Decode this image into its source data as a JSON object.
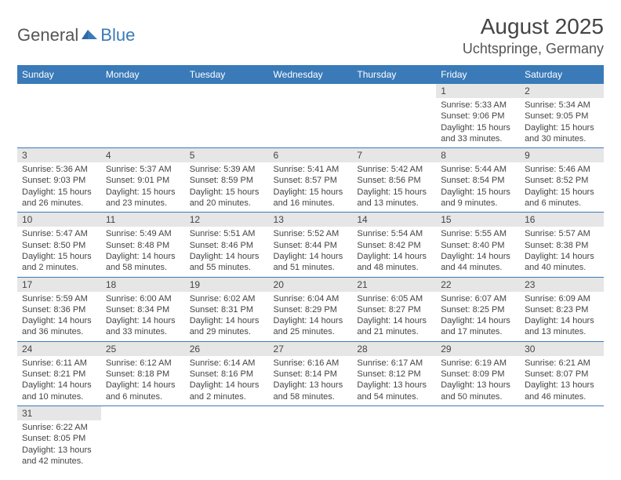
{
  "logo": {
    "left": "General",
    "right": "Blue"
  },
  "title": "August 2025",
  "location": "Uchtspringe, Germany",
  "colors": {
    "headerBar": "#3a7ab8",
    "dateBg": "#e6e6e6"
  },
  "dayNames": [
    "Sunday",
    "Monday",
    "Tuesday",
    "Wednesday",
    "Thursday",
    "Friday",
    "Saturday"
  ],
  "weeks": [
    [
      null,
      null,
      null,
      null,
      null,
      {
        "d": "1",
        "sr": "5:33 AM",
        "ss": "9:06 PM",
        "dl": "15 hours and 33 minutes."
      },
      {
        "d": "2",
        "sr": "5:34 AM",
        "ss": "9:05 PM",
        "dl": "15 hours and 30 minutes."
      }
    ],
    [
      {
        "d": "3",
        "sr": "5:36 AM",
        "ss": "9:03 PM",
        "dl": "15 hours and 26 minutes."
      },
      {
        "d": "4",
        "sr": "5:37 AM",
        "ss": "9:01 PM",
        "dl": "15 hours and 23 minutes."
      },
      {
        "d": "5",
        "sr": "5:39 AM",
        "ss": "8:59 PM",
        "dl": "15 hours and 20 minutes."
      },
      {
        "d": "6",
        "sr": "5:41 AM",
        "ss": "8:57 PM",
        "dl": "15 hours and 16 minutes."
      },
      {
        "d": "7",
        "sr": "5:42 AM",
        "ss": "8:56 PM",
        "dl": "15 hours and 13 minutes."
      },
      {
        "d": "8",
        "sr": "5:44 AM",
        "ss": "8:54 PM",
        "dl": "15 hours and 9 minutes."
      },
      {
        "d": "9",
        "sr": "5:46 AM",
        "ss": "8:52 PM",
        "dl": "15 hours and 6 minutes."
      }
    ],
    [
      {
        "d": "10",
        "sr": "5:47 AM",
        "ss": "8:50 PM",
        "dl": "15 hours and 2 minutes."
      },
      {
        "d": "11",
        "sr": "5:49 AM",
        "ss": "8:48 PM",
        "dl": "14 hours and 58 minutes."
      },
      {
        "d": "12",
        "sr": "5:51 AM",
        "ss": "8:46 PM",
        "dl": "14 hours and 55 minutes."
      },
      {
        "d": "13",
        "sr": "5:52 AM",
        "ss": "8:44 PM",
        "dl": "14 hours and 51 minutes."
      },
      {
        "d": "14",
        "sr": "5:54 AM",
        "ss": "8:42 PM",
        "dl": "14 hours and 48 minutes."
      },
      {
        "d": "15",
        "sr": "5:55 AM",
        "ss": "8:40 PM",
        "dl": "14 hours and 44 minutes."
      },
      {
        "d": "16",
        "sr": "5:57 AM",
        "ss": "8:38 PM",
        "dl": "14 hours and 40 minutes."
      }
    ],
    [
      {
        "d": "17",
        "sr": "5:59 AM",
        "ss": "8:36 PM",
        "dl": "14 hours and 36 minutes."
      },
      {
        "d": "18",
        "sr": "6:00 AM",
        "ss": "8:34 PM",
        "dl": "14 hours and 33 minutes."
      },
      {
        "d": "19",
        "sr": "6:02 AM",
        "ss": "8:31 PM",
        "dl": "14 hours and 29 minutes."
      },
      {
        "d": "20",
        "sr": "6:04 AM",
        "ss": "8:29 PM",
        "dl": "14 hours and 25 minutes."
      },
      {
        "d": "21",
        "sr": "6:05 AM",
        "ss": "8:27 PM",
        "dl": "14 hours and 21 minutes."
      },
      {
        "d": "22",
        "sr": "6:07 AM",
        "ss": "8:25 PM",
        "dl": "14 hours and 17 minutes."
      },
      {
        "d": "23",
        "sr": "6:09 AM",
        "ss": "8:23 PM",
        "dl": "14 hours and 13 minutes."
      }
    ],
    [
      {
        "d": "24",
        "sr": "6:11 AM",
        "ss": "8:21 PM",
        "dl": "14 hours and 10 minutes."
      },
      {
        "d": "25",
        "sr": "6:12 AM",
        "ss": "8:18 PM",
        "dl": "14 hours and 6 minutes."
      },
      {
        "d": "26",
        "sr": "6:14 AM",
        "ss": "8:16 PM",
        "dl": "14 hours and 2 minutes."
      },
      {
        "d": "27",
        "sr": "6:16 AM",
        "ss": "8:14 PM",
        "dl": "13 hours and 58 minutes."
      },
      {
        "d": "28",
        "sr": "6:17 AM",
        "ss": "8:12 PM",
        "dl": "13 hours and 54 minutes."
      },
      {
        "d": "29",
        "sr": "6:19 AM",
        "ss": "8:09 PM",
        "dl": "13 hours and 50 minutes."
      },
      {
        "d": "30",
        "sr": "6:21 AM",
        "ss": "8:07 PM",
        "dl": "13 hours and 46 minutes."
      }
    ],
    [
      {
        "d": "31",
        "sr": "6:22 AM",
        "ss": "8:05 PM",
        "dl": "13 hours and 42 minutes."
      },
      null,
      null,
      null,
      null,
      null,
      null
    ]
  ],
  "labels": {
    "sunrise": "Sunrise:",
    "sunset": "Sunset:",
    "daylight": "Daylight:"
  }
}
